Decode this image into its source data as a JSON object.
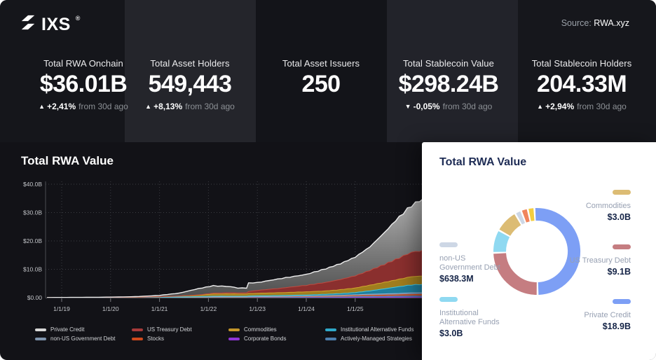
{
  "header": {
    "logo_text": "IXS",
    "logo_reg": "®",
    "source_label": "Source:",
    "source_value": "RWA.xyz"
  },
  "stats": [
    {
      "title": "Total RWA Onchain",
      "value": "$36.01B",
      "delta_icon": "▲",
      "delta": "+2,41%",
      "delta_suffix": "from 30d ago"
    },
    {
      "title": "Total Asset Holders",
      "value": "549,443",
      "delta_icon": "▲",
      "delta": "+8,13%",
      "delta_suffix": "from 30d ago"
    },
    {
      "title": "Total Asset Issuers",
      "value": "250",
      "delta_icon": "",
      "delta": "",
      "delta_suffix": ""
    },
    {
      "title": "Total Stablecoin Value",
      "value": "$298.24B",
      "delta_icon": "▼",
      "delta": "-0,05%",
      "delta_suffix": "from 30d ago"
    },
    {
      "title": "Total Stablecoin Holders",
      "value": "204.33M",
      "delta_icon": "▲",
      "delta": "+2,94%",
      "delta_suffix": "from 30d ago"
    }
  ],
  "chart_data": [
    {
      "id": "total-rwa-value-area",
      "type": "area",
      "stacked": true,
      "title": "Total RWA Value",
      "ylim": [
        0,
        40
      ],
      "grid": true,
      "legend_position": "bottom",
      "y_ticks": [
        {
          "label": "$0.00",
          "value": 0
        },
        {
          "label": "$10.0B",
          "value": 10
        },
        {
          "label": "$20.0B",
          "value": 20
        },
        {
          "label": "$30.0B",
          "value": 30
        },
        {
          "label": "$40.0B",
          "value": 40
        }
      ],
      "x_ticks": [
        {
          "label": "1/1/19",
          "year": 2019
        },
        {
          "label": "1/1/20",
          "year": 2020
        },
        {
          "label": "1/1/21",
          "year": 2021
        },
        {
          "label": "1/1/22",
          "year": 2022
        },
        {
          "label": "1/1/23",
          "year": 2023
        },
        {
          "label": "1/1/24",
          "year": 2024
        },
        {
          "label": "1/1/25",
          "year": 2025
        }
      ],
      "x": [
        2018.7,
        2019.5,
        2020,
        2020.5,
        2021,
        2021.4,
        2021.8,
        2022.1,
        2022.45,
        2022.6,
        2022.78,
        2022.82,
        2023,
        2023.5,
        2024,
        2024.4,
        2024.7,
        2025,
        2025.3,
        2025.6,
        2025.9,
        2026.15,
        2026.48
      ],
      "series": [
        {
          "name": "corporate-bonds",
          "label": "Corporate Bonds",
          "fill": "#6a28b8",
          "stroke": "#9747e8",
          "values": [
            0,
            0,
            0,
            0,
            0.02,
            0.03,
            0.05,
            0.06,
            0.06,
            0.06,
            0.06,
            0.06,
            0.07,
            0.08,
            0.1,
            0.1,
            0.12,
            0.15,
            0.15,
            0.18,
            0.2,
            0.2,
            0.2
          ]
        },
        {
          "name": "actively-managed-strategies",
          "label": "Actively-Managed Strategies",
          "fill": "#33638f",
          "stroke": "#5b93c4",
          "values": [
            0,
            0,
            0,
            0.01,
            0.02,
            0.03,
            0.05,
            0.08,
            0.08,
            0.08,
            0.08,
            0.1,
            0.1,
            0.12,
            0.15,
            0.18,
            0.2,
            0.25,
            0.3,
            0.3,
            0.35,
            0.4,
            0.4
          ]
        },
        {
          "name": "stocks",
          "label": "Stocks",
          "fill": "#b23c12",
          "stroke": "#e0561f",
          "values": [
            0,
            0,
            0,
            0,
            0.01,
            0.02,
            0.04,
            0.06,
            0.06,
            0.06,
            0.06,
            0.08,
            0.1,
            0.12,
            0.15,
            0.2,
            0.25,
            0.3,
            0.35,
            0.4,
            0.45,
            0.5,
            0.5
          ]
        },
        {
          "name": "non-us-government-debt",
          "label": "non-US Government Debt",
          "fill": "#6e84a0",
          "stroke": "#9fb4cc",
          "values": [
            0,
            0,
            0,
            0,
            0.01,
            0.02,
            0.03,
            0.05,
            0.05,
            0.05,
            0.05,
            0.06,
            0.08,
            0.1,
            0.15,
            0.2,
            0.25,
            0.3,
            0.4,
            0.45,
            0.5,
            0.6,
            0.64
          ]
        },
        {
          "name": "institutional-alternative-funds",
          "label": "Institutional Alternative Funds",
          "fill": "#1e7f9e",
          "stroke": "#41c8e4",
          "values": [
            0.04,
            0.06,
            0.08,
            0.1,
            0.12,
            0.15,
            0.2,
            0.25,
            0.25,
            0.25,
            0.25,
            0.3,
            0.3,
            0.35,
            0.4,
            0.5,
            0.6,
            0.8,
            1.2,
            1.8,
            2.4,
            2.8,
            3.0
          ]
        },
        {
          "name": "commodities",
          "label": "Commodities",
          "fill": "#a07d1e",
          "stroke": "#d1a62e",
          "values": [
            0,
            0.01,
            0.02,
            0.05,
            0.15,
            0.3,
            0.5,
            0.8,
            0.85,
            0.8,
            0.8,
            0.85,
            0.9,
            1.0,
            1.1,
            1.2,
            1.4,
            1.6,
            2.0,
            2.3,
            2.6,
            2.9,
            3.0
          ]
        },
        {
          "name": "us-treasury-debt",
          "label": "US Treasury Debt",
          "fill": "#8a2f2e",
          "stroke": "#c04b40",
          "values": [
            0,
            0,
            0,
            0,
            0,
            0.02,
            0.1,
            0.3,
            0.4,
            0.4,
            0.4,
            0.7,
            1.0,
            1.6,
            2.3,
            3.0,
            3.6,
            4.3,
            5.2,
            6.3,
            7.5,
            8.6,
            9.1
          ]
        },
        {
          "name": "private-credit",
          "label": "Private Credit",
          "fill": "#8e8e8e",
          "stroke": "#efefef",
          "values": [
            0.01,
            0.05,
            0.1,
            0.19,
            0.47,
            1.03,
            2.23,
            2.6,
            2.15,
            1.7,
            1.7,
            3.05,
            2.75,
            3.43,
            3.85,
            4.82,
            5.58,
            6.6,
            8.3,
            11.27,
            14.5,
            16.5,
            18.86
          ]
        }
      ],
      "legend_items": [
        {
          "label": "Private Credit",
          "color": "#d8d8d8"
        },
        {
          "label": "non-US Government Debt",
          "color": "#7f94ad"
        },
        {
          "label": "US Treasury Debt",
          "color": "#a63a3a"
        },
        {
          "label": "Stocks",
          "color": "#d0491d"
        },
        {
          "label": "Commodities",
          "color": "#c3962a"
        },
        {
          "label": "Corporate Bonds",
          "color": "#8f35d6"
        },
        {
          "label": "Institutional Alternative Funds",
          "color": "#2fa8c9"
        },
        {
          "label": "Actively-Managed Strategies",
          "color": "#4d7fae"
        }
      ]
    },
    {
      "id": "total-rwa-value-donut",
      "type": "donut",
      "title": "Total RWA Value",
      "segments": [
        {
          "label": "Private Credit",
          "value": 18.9,
          "display": "$18.9B",
          "color": "#7d9ff5"
        },
        {
          "label": "US Treasury Debt",
          "value": 9.1,
          "display": "$9.1B",
          "color": "#c57d81"
        },
        {
          "label": "Institutional Alternative Funds",
          "value": 3.0,
          "display": "$3.0B",
          "color": "#8fd9f1"
        },
        {
          "label": "Commodities",
          "value": 3.0,
          "display": "$3.0B",
          "color": "#dcbc74"
        },
        {
          "label": "non-US Government Debt",
          "value": 0.638,
          "display": "$638.3M",
          "color": "#cdd7e5"
        },
        {
          "label": "",
          "value": 0.69,
          "display": "",
          "color": "#f0855d"
        },
        {
          "label": "",
          "value": 0.68,
          "display": "",
          "color": "#f3cd3f"
        }
      ],
      "callouts": [
        {
          "name": "commodities",
          "lines": [
            "Commodities"
          ],
          "value": "$3.0B",
          "color": "#dcbc74"
        },
        {
          "name": "us-treasury-debt",
          "lines": [
            "US Treasury Debt"
          ],
          "value": "$9.1B",
          "color": "#c57d81"
        },
        {
          "name": "private-credit",
          "lines": [
            "Private Credit"
          ],
          "value": "$18.9B",
          "color": "#7d9ff5"
        },
        {
          "name": "non-us-government-debt",
          "lines": [
            "non-US",
            "Government Debt"
          ],
          "value": "$638.3M",
          "color": "#cdd7e5"
        },
        {
          "name": "institutional-alternative-funds",
          "lines": [
            "Institutional",
            "Alternative Funds"
          ],
          "value": "$3.0B",
          "color": "#8fd9f1"
        }
      ]
    }
  ]
}
